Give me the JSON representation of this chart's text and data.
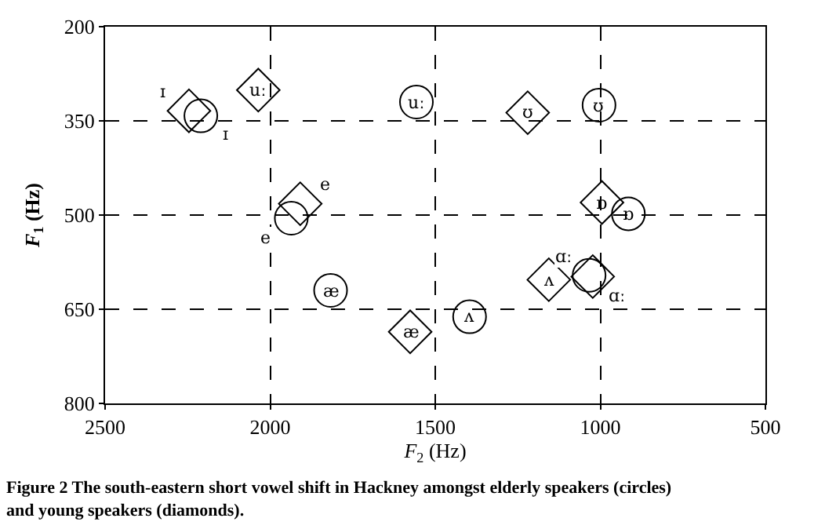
{
  "chart_data": {
    "type": "scatter",
    "title": "Figure 2 The south-eastern short vowel shift in Hackney amongst elderly speakers (circles) and young speakers (diamonds).",
    "xlabel": "F$_{2}$ (Hz)",
    "ylabel": "F$_{1}$ (Hz)",
    "xlim": [
      2500,
      500
    ],
    "xticks": [
      2500,
      2000,
      1500,
      1000,
      500
    ],
    "ylim": [
      800,
      200
    ],
    "yticks": [
      200,
      350,
      500,
      650,
      800
    ],
    "grid": true,
    "line_style": "dashed",
    "series": [
      {
        "marker": "circle",
        "color": "#000000",
        "x": [
          2210,
          1557,
          1004,
          1936,
          915,
          1817,
          1396,
          1034
        ],
        "values": [
          342,
          320,
          325,
          505,
          498,
          620,
          662,
          596
        ],
        "value_labels": [
          "ɪ",
          "uː",
          "ʊ",
          "e",
          "ɒ",
          "æ",
          "ʌ",
          "ɑː"
        ]
      },
      {
        "marker": "diamond",
        "color": "#000000",
        "x": [
          2246,
          2036,
          1220,
          1909,
          995,
          1576,
          1156,
          1023
        ],
        "values": [
          334,
          301,
          337,
          482,
          480,
          686,
          603,
          598
        ],
        "value_labels": [
          "ɪ",
          "uː",
          "ʊ",
          "e",
          "ɒ",
          "æ",
          "ʌ",
          "ɑː"
        ]
      }
    ]
  }
}
